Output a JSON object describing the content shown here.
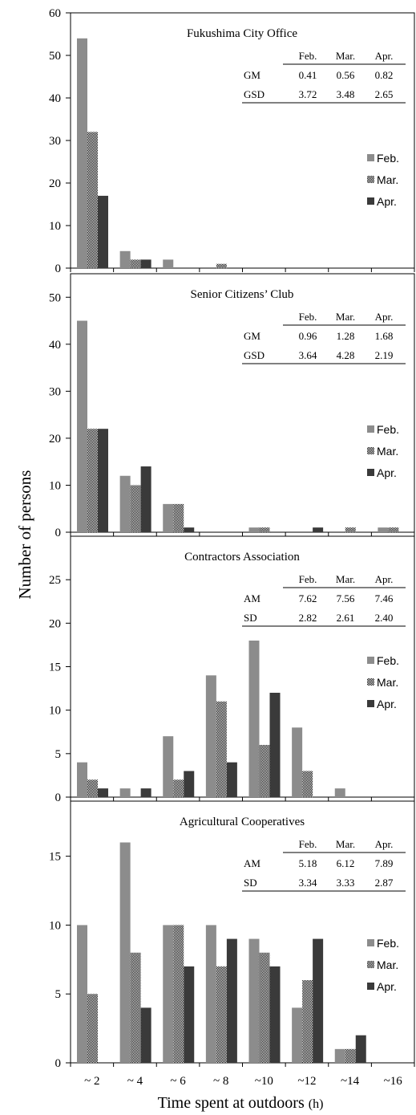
{
  "figure": {
    "ylabel": "Number of persons",
    "xlabel": "Time spent at outdoors ",
    "xlabel_unit": "(h)"
  },
  "legend": [
    "Feb.",
    "Mar.",
    "Apr."
  ],
  "colors": {
    "feb": "#8c8c8c",
    "mar_pattern": "checkerboard",
    "apr": "#3a3a3a"
  },
  "chart_data": [
    {
      "type": "bar",
      "title": "Fukushima City Office",
      "categories": [
        "~ 2",
        "~ 4",
        "~ 6",
        "~ 8",
        "~10",
        "~12",
        "~14",
        "~16"
      ],
      "series": [
        {
          "name": "Feb.",
          "values": [
            54,
            4,
            2,
            0,
            0,
            0,
            0,
            0
          ]
        },
        {
          "name": "Mar.",
          "values": [
            32,
            2,
            0,
            1,
            0,
            0,
            0,
            0
          ]
        },
        {
          "name": "Apr.",
          "values": [
            17,
            2,
            0,
            0,
            0,
            0,
            0,
            0
          ]
        }
      ],
      "ylim": [
        0,
        60
      ],
      "yticks": [
        0,
        10,
        20,
        30,
        40,
        50,
        60
      ],
      "stats_table": {
        "header": [
          "",
          "Feb.",
          "Mar.",
          "Apr."
        ],
        "rows": [
          [
            "GM",
            "0.41",
            "0.56",
            "0.82"
          ],
          [
            "GSD",
            "3.72",
            "3.48",
            "2.65"
          ]
        ]
      }
    },
    {
      "type": "bar",
      "title": "Senior Citizens’ Club",
      "categories": [
        "~ 2",
        "~ 4",
        "~ 6",
        "~ 8",
        "~10",
        "~12",
        "~14",
        "~16"
      ],
      "series": [
        {
          "name": "Feb.",
          "values": [
            45,
            12,
            6,
            0,
            1,
            0,
            0,
            1
          ]
        },
        {
          "name": "Mar.",
          "values": [
            22,
            10,
            6,
            0,
            1,
            0,
            1,
            1
          ]
        },
        {
          "name": "Apr.",
          "values": [
            22,
            14,
            1,
            0,
            0,
            1,
            0,
            0
          ]
        }
      ],
      "ylim": [
        0,
        55
      ],
      "yticks": [
        0,
        10,
        20,
        30,
        40,
        50
      ],
      "stats_table": {
        "header": [
          "",
          "Feb.",
          "Mar.",
          "Apr."
        ],
        "rows": [
          [
            "GM",
            "0.96",
            "1.28",
            "1.68"
          ],
          [
            "GSD",
            "3.64",
            "4.28",
            "2.19"
          ]
        ]
      }
    },
    {
      "type": "bar",
      "title": "Contractors Association",
      "categories": [
        "~ 2",
        "~ 4",
        "~ 6",
        "~ 8",
        "~10",
        "~12",
        "~14",
        "~16"
      ],
      "series": [
        {
          "name": "Feb.",
          "values": [
            4,
            1,
            7,
            14,
            18,
            8,
            1,
            0
          ]
        },
        {
          "name": "Mar.",
          "values": [
            2,
            0,
            2,
            11,
            6,
            3,
            0,
            0
          ]
        },
        {
          "name": "Apr.",
          "values": [
            1,
            1,
            3,
            4,
            12,
            0,
            0,
            0
          ]
        }
      ],
      "ylim": [
        0,
        30
      ],
      "yticks": [
        0,
        5,
        10,
        15,
        20,
        25
      ],
      "stats_table": {
        "header": [
          "",
          "Feb.",
          "Mar.",
          "Apr."
        ],
        "rows": [
          [
            "AM",
            "7.62",
            "7.56",
            "7.46"
          ],
          [
            "SD",
            "2.82",
            "2.61",
            "2.40"
          ]
        ]
      }
    },
    {
      "type": "bar",
      "title": "Agricultural Cooperatives",
      "categories": [
        "~ 2",
        "~ 4",
        "~ 6",
        "~ 8",
        "~10",
        "~12",
        "~14",
        "~16"
      ],
      "series": [
        {
          "name": "Feb.",
          "values": [
            10,
            16,
            10,
            10,
            9,
            4,
            1,
            0
          ]
        },
        {
          "name": "Mar.",
          "values": [
            5,
            8,
            10,
            7,
            8,
            6,
            1,
            0
          ]
        },
        {
          "name": "Apr.",
          "values": [
            0,
            4,
            7,
            9,
            7,
            9,
            2,
            0
          ]
        }
      ],
      "ylim": [
        0,
        19
      ],
      "yticks": [
        0,
        5,
        10,
        15
      ],
      "stats_table": {
        "header": [
          "",
          "Feb.",
          "Mar.",
          "Apr."
        ],
        "rows": [
          [
            "AM",
            "5.18",
            "6.12",
            "7.89"
          ],
          [
            "SD",
            "3.34",
            "3.33",
            "2.87"
          ]
        ]
      }
    }
  ]
}
